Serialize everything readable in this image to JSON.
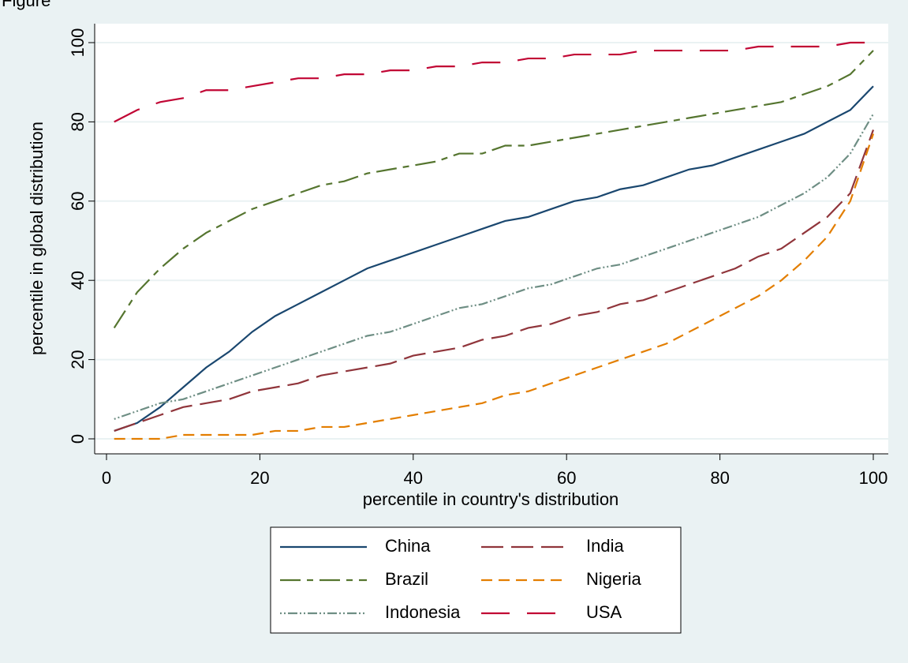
{
  "chart_data": {
    "type": "line",
    "caption": "Figure",
    "xlabel": "percentile in country's distribution",
    "ylabel": "percentile in global distribution",
    "x": [
      1,
      4,
      7,
      10,
      13,
      16,
      19,
      22,
      25,
      28,
      31,
      34,
      37,
      40,
      43,
      46,
      49,
      52,
      55,
      58,
      61,
      64,
      67,
      70,
      73,
      76,
      79,
      82,
      85,
      88,
      91,
      94,
      97,
      100
    ],
    "series": [
      {
        "name": "China",
        "color": "#1a476f",
        "values": [
          2,
          4,
          8,
          13,
          18,
          22,
          27,
          31,
          34,
          37,
          40,
          43,
          45,
          47,
          49,
          51,
          53,
          55,
          56,
          58,
          60,
          61,
          63,
          64,
          66,
          68,
          69,
          71,
          73,
          75,
          77,
          80,
          83,
          89
        ]
      },
      {
        "name": "India",
        "color": "#90353b",
        "values": [
          2,
          4,
          6,
          8,
          9,
          10,
          12,
          13,
          14,
          16,
          17,
          18,
          19,
          21,
          22,
          23,
          25,
          26,
          28,
          29,
          31,
          32,
          34,
          35,
          37,
          39,
          41,
          43,
          46,
          48,
          52,
          56,
          62,
          78
        ]
      },
      {
        "name": "Brazil",
        "color": "#55752f",
        "values": [
          28,
          37,
          43,
          48,
          52,
          55,
          58,
          60,
          62,
          64,
          65,
          67,
          68,
          69,
          70,
          72,
          72,
          74,
          74,
          75,
          76,
          77,
          78,
          79,
          80,
          81,
          82,
          83,
          84,
          85,
          87,
          89,
          92,
          98
        ]
      },
      {
        "name": "Nigeria",
        "color": "#e37e00",
        "values": [
          0,
          0,
          0,
          1,
          1,
          1,
          1,
          2,
          2,
          3,
          3,
          4,
          5,
          6,
          7,
          8,
          9,
          11,
          12,
          14,
          16,
          18,
          20,
          22,
          24,
          27,
          30,
          33,
          36,
          40,
          45,
          51,
          60,
          77
        ]
      },
      {
        "name": "Indonesia",
        "color": "#6e8e84",
        "values": [
          5,
          7,
          9,
          10,
          12,
          14,
          16,
          18,
          20,
          22,
          24,
          26,
          27,
          29,
          31,
          33,
          34,
          36,
          38,
          39,
          41,
          43,
          44,
          46,
          48,
          50,
          52,
          54,
          56,
          59,
          62,
          66,
          72,
          82
        ]
      },
      {
        "name": "USA",
        "color": "#c10534",
        "values": [
          80,
          83,
          85,
          86,
          88,
          88,
          89,
          90,
          91,
          91,
          92,
          92,
          93,
          93,
          94,
          94,
          95,
          95,
          96,
          96,
          97,
          97,
          97,
          98,
          98,
          98,
          98,
          98,
          99,
          99,
          99,
          99,
          100,
          100
        ]
      }
    ],
    "xlim": [
      0,
      100
    ],
    "xticks": [
      0,
      20,
      40,
      60,
      80,
      100
    ],
    "ylim": [
      0,
      100
    ],
    "yticks": [
      0,
      20,
      40,
      60,
      80,
      100
    ],
    "grid": true
  }
}
